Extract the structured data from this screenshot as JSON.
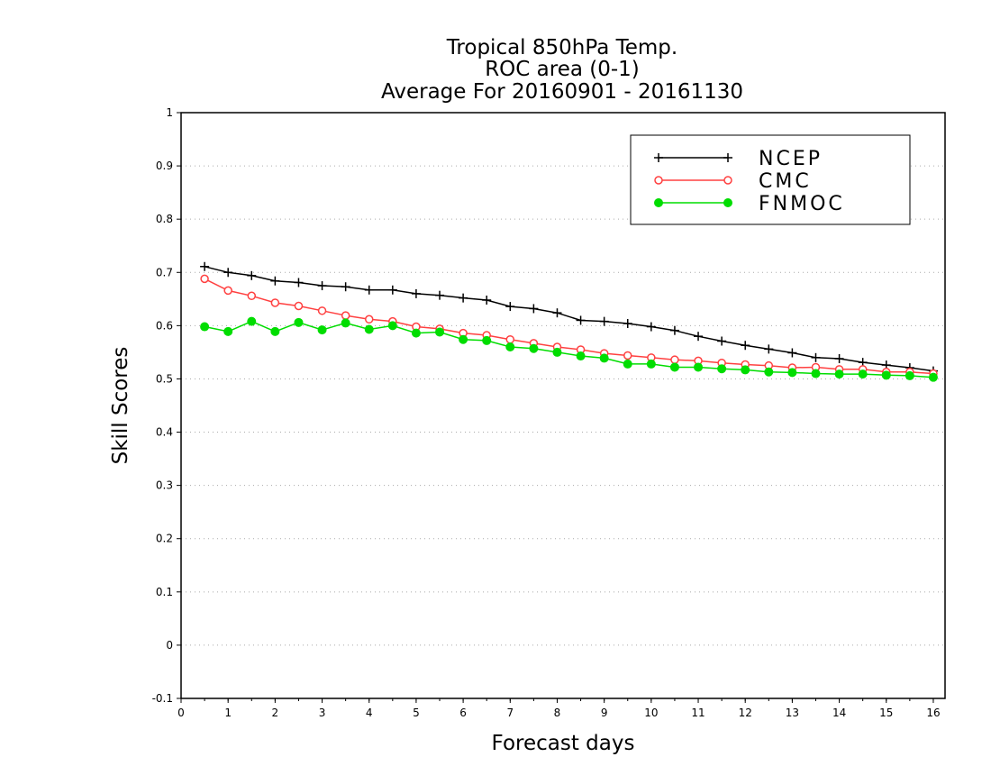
{
  "title_lines": [
    "Tropical 850hPa Temp.",
    "ROC area (0-1)",
    "Average For 20160901 - 20161130"
  ],
  "chart_data": {
    "type": "line",
    "title": "Tropical 850hPa Temp.",
    "subtitle": [
      "ROC area (0-1)",
      "Average For 20160901 - 20161130"
    ],
    "xlabel": "Forecast days",
    "ylabel": "Skill Scores",
    "xlim": [
      0,
      16.25
    ],
    "ylim": [
      -0.1,
      1
    ],
    "xticks": [
      0,
      1,
      2,
      3,
      4,
      5,
      6,
      7,
      8,
      9,
      10,
      11,
      12,
      13,
      14,
      15,
      16
    ],
    "yticks": [
      -0.1,
      0,
      0.1,
      0.2,
      0.3,
      0.4,
      0.5,
      0.6,
      0.7,
      0.8,
      0.9,
      1
    ],
    "ytick_labels": [
      "-0.1",
      "0",
      "0.1",
      "0.2",
      "0.3",
      "0.4",
      "0.5",
      "0.6",
      "0.7",
      "0.8",
      "0.9",
      "1"
    ],
    "grid": "horizontal dotted",
    "legend_position": "top-right",
    "x": [
      0.5,
      1,
      1.5,
      2,
      2.5,
      3,
      3.5,
      4,
      4.5,
      5,
      5.5,
      6,
      6.5,
      7,
      7.5,
      8,
      8.5,
      9,
      9.5,
      10,
      10.5,
      11,
      11.5,
      12,
      12.5,
      13,
      13.5,
      14,
      14.5,
      15,
      15.5,
      16
    ],
    "series": [
      {
        "name": "NCEP",
        "color": "#000000",
        "marker": "plus",
        "values": [
          0.711,
          0.7,
          0.694,
          0.684,
          0.681,
          0.675,
          0.673,
          0.667,
          0.667,
          0.66,
          0.657,
          0.652,
          0.648,
          0.636,
          0.632,
          0.624,
          0.61,
          0.608,
          0.604,
          0.598,
          0.591,
          0.58,
          0.571,
          0.563,
          0.556,
          0.549,
          0.54,
          0.538,
          0.531,
          0.526,
          0.521,
          0.515
        ]
      },
      {
        "name": "CMC",
        "color": "#ff4040",
        "marker": "open-circle",
        "values": [
          0.688,
          0.666,
          0.656,
          0.643,
          0.637,
          0.628,
          0.619,
          0.612,
          0.608,
          0.598,
          0.594,
          0.586,
          0.582,
          0.574,
          0.567,
          0.56,
          0.555,
          0.548,
          0.544,
          0.54,
          0.536,
          0.534,
          0.53,
          0.527,
          0.525,
          0.521,
          0.522,
          0.518,
          0.518,
          0.513,
          0.513,
          0.51
        ]
      },
      {
        "name": "FNMOC",
        "color": "#00dd00",
        "marker": "filled-circle",
        "values": [
          0.598,
          0.589,
          0.608,
          0.589,
          0.606,
          0.592,
          0.605,
          0.593,
          0.6,
          0.586,
          0.588,
          0.574,
          0.572,
          0.56,
          0.557,
          0.55,
          0.543,
          0.539,
          0.528,
          0.528,
          0.522,
          0.522,
          0.519,
          0.517,
          0.513,
          0.512,
          0.51,
          0.509,
          0.509,
          0.507,
          0.506,
          0.503
        ]
      }
    ]
  }
}
